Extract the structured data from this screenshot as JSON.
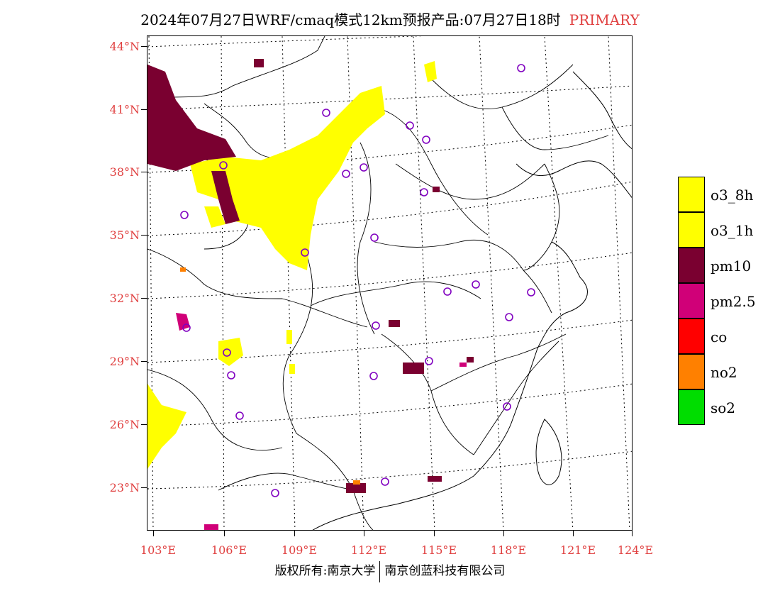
{
  "title": {
    "main": "2024年07月27日WRF/cmaq模式12km预报产品:07月27日18时",
    "tag": "PRIMARY"
  },
  "axes": {
    "lat_labels": [
      "44°N",
      "41°N",
      "38°N",
      "35°N",
      "32°N",
      "29°N",
      "26°N",
      "23°N"
    ],
    "lon_labels": [
      "103°E",
      "106°E",
      "109°E",
      "112°E",
      "115°E",
      "118°E",
      "121°E",
      "124°E"
    ]
  },
  "legend": [
    {
      "label": "o3_8h",
      "color": "#ffff00"
    },
    {
      "label": "o3_1h",
      "color": "#ffff00"
    },
    {
      "label": "pm10",
      "color": "#7a0030"
    },
    {
      "label": "pm2.5",
      "color": "#d00078"
    },
    {
      "label": "co",
      "color": "#ff0000"
    },
    {
      "label": "no2",
      "color": "#ff8000"
    },
    {
      "label": "so2",
      "color": "#00dd00"
    }
  ],
  "colors": {
    "o3": "#ffff00",
    "pm10": "#7a0030",
    "pm25": "#d00078",
    "no2": "#ff8000",
    "station": "#8000c0",
    "axis_label": "#e04040"
  },
  "footer": {
    "left": "版权所有:南京大学",
    "right": "南京创蓝科技有限公司"
  }
}
